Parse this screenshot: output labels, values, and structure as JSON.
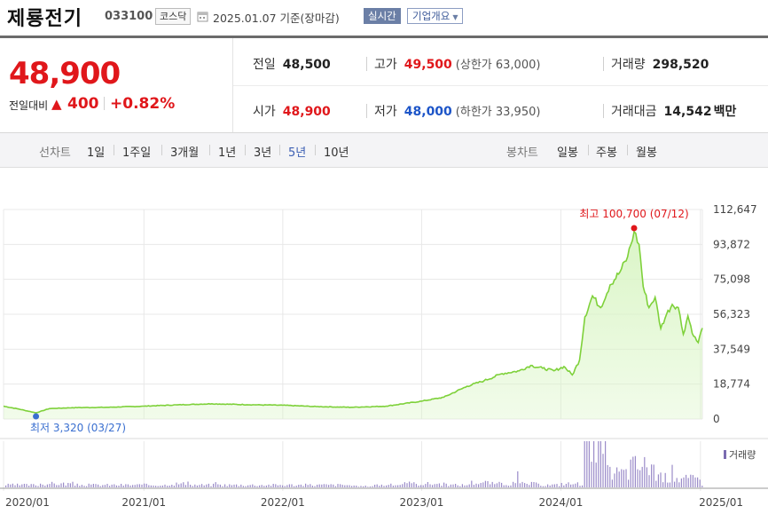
{
  "header": {
    "stock_name": "제룡전기",
    "stock_code": "033100",
    "market": "코스닥",
    "date_text": "2025.01.07 기준(장마감)",
    "realtime_label": "실시간",
    "overview_label": "기업개요"
  },
  "price": {
    "current": "48,900",
    "change_label": "전일대비",
    "change_arrow": "▲",
    "change_value": "400",
    "change_rate": "+0.82%"
  },
  "stats": {
    "prev_close_label": "전일",
    "prev_close": "48,500",
    "open_label": "시가",
    "open": "48,900",
    "high_label": "고가",
    "high": "49,500",
    "upper_limit": "(상한가 63,000)",
    "low_label": "저가",
    "low": "48,000",
    "lower_limit": "(하한가 33,950)",
    "volume_label": "거래량",
    "volume": "298,520",
    "trade_value_label": "거래대금",
    "trade_value": "14,542",
    "trade_value_unit": "백만"
  },
  "toolbar": {
    "line_label": "선차트",
    "line_periods": [
      "1일",
      "1주일",
      "3개월",
      "1년",
      "3년",
      "5년",
      "10년"
    ],
    "active_period": "5년",
    "candle_label": "봉차트",
    "candle_periods": [
      "일봉",
      "주봉",
      "월봉"
    ]
  },
  "colors": {
    "up_red": "#e0171b",
    "down_blue": "#1d55c8",
    "line_green": "#7ed13a",
    "fill_green": "#d9f5c4",
    "volume_purple": "#9b8cc9"
  },
  "chart_data": {
    "type": "area",
    "x_tick_labels": [
      "2020/01",
      "2021/01",
      "2022/01",
      "2023/01",
      "2024/01",
      "2025/01"
    ],
    "y_tick_labels": [
      "112,647",
      "93,872",
      "75,098",
      "56,323",
      "37,549",
      "18,774",
      "0"
    ],
    "ylim": [
      0,
      112647
    ],
    "xlim": [
      "2020-01-02",
      "2025-01-07"
    ],
    "grid": true,
    "max_annotation": "최고 100,700 (07/12)",
    "min_annotation": "최저 3,320 (03/27)",
    "volume_legend": "거래량",
    "price_series": [
      [
        "2020-01-02",
        6900
      ],
      [
        "2020-02-10",
        5400
      ],
      [
        "2020-03-27",
        3320
      ],
      [
        "2020-05-01",
        5600
      ],
      [
        "2020-07-01",
        6100
      ],
      [
        "2020-10-01",
        6300
      ],
      [
        "2021-01-04",
        6900
      ],
      [
        "2021-04-01",
        7600
      ],
      [
        "2021-07-01",
        8200
      ],
      [
        "2021-10-01",
        7700
      ],
      [
        "2022-01-03",
        7400
      ],
      [
        "2022-04-01",
        6700
      ],
      [
        "2022-07-01",
        6300
      ],
      [
        "2022-10-01",
        6900
      ],
      [
        "2023-01-02",
        9600
      ],
      [
        "2023-03-01",
        11700
      ],
      [
        "2023-05-01",
        17600
      ],
      [
        "2023-06-15",
        20600
      ],
      [
        "2023-08-01",
        24400
      ],
      [
        "2023-09-15",
        25900
      ],
      [
        "2023-10-15",
        28800
      ],
      [
        "2023-11-15",
        27300
      ],
      [
        "2023-12-15",
        25900
      ],
      [
        "2024-01-10",
        28200
      ],
      [
        "2024-02-01",
        23700
      ],
      [
        "2024-02-20",
        31700
      ],
      [
        "2024-03-05",
        54900
      ],
      [
        "2024-03-25",
        66200
      ],
      [
        "2024-04-15",
        59900
      ],
      [
        "2024-05-10",
        72100
      ],
      [
        "2024-06-05",
        79100
      ],
      [
        "2024-06-25",
        87200
      ],
      [
        "2024-07-12",
        100700
      ],
      [
        "2024-07-25",
        93900
      ],
      [
        "2024-08-05",
        71100
      ],
      [
        "2024-08-20",
        59900
      ],
      [
        "2024-09-05",
        65500
      ],
      [
        "2024-09-20",
        48700
      ],
      [
        "2024-10-05",
        56300
      ],
      [
        "2024-10-20",
        61600
      ],
      [
        "2024-11-05",
        59900
      ],
      [
        "2024-11-18",
        45600
      ],
      [
        "2024-11-30",
        55400
      ],
      [
        "2024-12-15",
        44600
      ],
      [
        "2024-12-27",
        41100
      ],
      [
        "2025-01-07",
        48900
      ]
    ],
    "volume_series": [
      [
        "2020-01",
        2
      ],
      [
        "2020-04",
        3
      ],
      [
        "2020-07",
        2
      ],
      [
        "2020-10",
        2
      ],
      [
        "2021-01",
        2
      ],
      [
        "2021-03",
        3
      ],
      [
        "2021-05",
        2
      ],
      [
        "2021-07",
        2
      ],
      [
        "2021-09",
        2
      ],
      [
        "2021-11",
        2
      ],
      [
        "2022-01",
        2
      ],
      [
        "2022-03",
        2
      ],
      [
        "2022-05",
        2
      ],
      [
        "2022-07",
        1
      ],
      [
        "2022-09",
        2
      ],
      [
        "2022-11",
        3
      ],
      [
        "2023-01",
        3
      ],
      [
        "2023-03",
        2
      ],
      [
        "2023-05",
        4
      ],
      [
        "2023-07",
        3
      ],
      [
        "2023-09",
        3
      ],
      [
        "2023-11",
        2
      ],
      [
        "2024-01",
        3
      ],
      [
        "2024-03",
        30
      ],
      [
        "2024-05",
        12
      ],
      [
        "2024-07",
        18
      ],
      [
        "2024-09",
        8
      ],
      [
        "2024-11",
        7
      ],
      [
        "2025-01",
        3
      ]
    ]
  }
}
